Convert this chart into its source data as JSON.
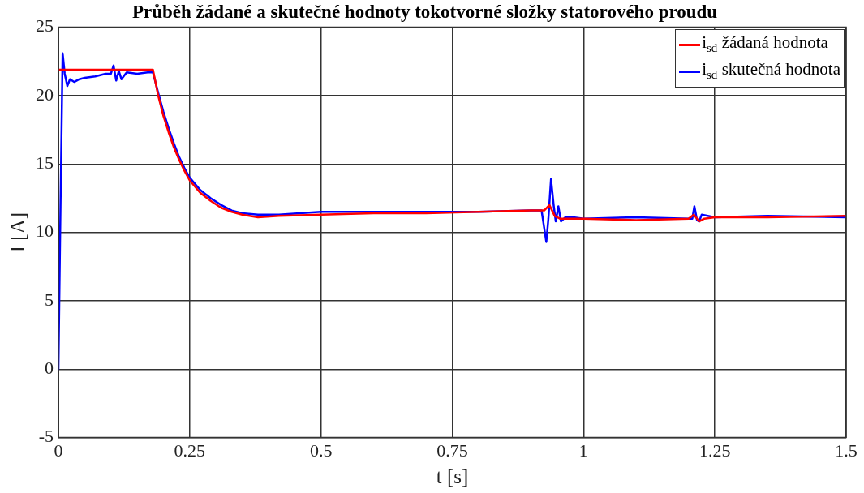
{
  "chart_data": {
    "type": "line",
    "title": "Průběh žádané a skutečné hodnoty tokotvorné složky statorového proudu",
    "xlabel": "t [s]",
    "ylabel": "I [A]",
    "xlim": [
      0,
      1.5
    ],
    "xticks": [
      0,
      0.25,
      0.5,
      0.75,
      1,
      1.25,
      1.5
    ],
    "ylim": [
      -5,
      25
    ],
    "yticks": [
      -5,
      0,
      5,
      10,
      15,
      20,
      25
    ],
    "grid": true,
    "legend": "top right",
    "line_style": "solid",
    "marker": "none",
    "series": [
      {
        "name": "i$_{sd}$ žádaná hodnota",
        "color": "#ff0000",
        "x": [
          0,
          0.18,
          0.19,
          0.2,
          0.21,
          0.22,
          0.23,
          0.24,
          0.25,
          0.27,
          0.29,
          0.31,
          0.33,
          0.35,
          0.38,
          0.42,
          0.5,
          0.6,
          0.7,
          0.8,
          0.9,
          0.925,
          0.935,
          0.945,
          0.955,
          0.97,
          1.0,
          1.1,
          1.2,
          1.21,
          1.22,
          1.23,
          1.25,
          1.35,
          1.5
        ],
        "values": [
          21.9,
          21.9,
          20.0,
          18.5,
          17.3,
          16.2,
          15.3,
          14.5,
          13.8,
          12.9,
          12.3,
          11.8,
          11.5,
          11.3,
          11.1,
          11.2,
          11.3,
          11.4,
          11.4,
          11.5,
          11.6,
          11.6,
          12.0,
          11.2,
          11.0,
          11.0,
          11.0,
          10.9,
          11.0,
          11.3,
          10.8,
          11.0,
          11.1,
          11.1,
          11.2
        ]
      },
      {
        "name": "i$_{sd}$ skutečná hodnota",
        "color": "#0000ff",
        "x": [
          0,
          0.004,
          0.008,
          0.012,
          0.017,
          0.022,
          0.03,
          0.04,
          0.05,
          0.07,
          0.09,
          0.1,
          0.105,
          0.11,
          0.115,
          0.12,
          0.13,
          0.15,
          0.17,
          0.18,
          0.19,
          0.2,
          0.21,
          0.22,
          0.23,
          0.24,
          0.25,
          0.27,
          0.29,
          0.31,
          0.33,
          0.35,
          0.38,
          0.42,
          0.5,
          0.6,
          0.7,
          0.8,
          0.9,
          0.92,
          0.929,
          0.933,
          0.938,
          0.943,
          0.947,
          0.952,
          0.957,
          0.965,
          0.98,
          1.0,
          1.1,
          1.2,
          1.207,
          1.211,
          1.216,
          1.22,
          1.225,
          1.25,
          1.35,
          1.5
        ],
        "values": [
          0,
          12,
          23.1,
          21.6,
          20.7,
          21.2,
          21.0,
          21.2,
          21.3,
          21.4,
          21.6,
          21.6,
          22.2,
          21.1,
          21.8,
          21.2,
          21.7,
          21.6,
          21.7,
          21.7,
          20.2,
          18.8,
          17.6,
          16.5,
          15.5,
          14.7,
          14.0,
          13.1,
          12.5,
          12.0,
          11.6,
          11.4,
          11.3,
          11.3,
          11.5,
          11.5,
          11.5,
          11.5,
          11.6,
          11.6,
          9.3,
          11.0,
          13.9,
          12.0,
          10.8,
          11.9,
          10.8,
          11.1,
          11.1,
          11.0,
          11.1,
          11.0,
          11.0,
          11.9,
          10.9,
          10.8,
          11.3,
          11.1,
          11.2,
          11.1
        ]
      }
    ]
  }
}
